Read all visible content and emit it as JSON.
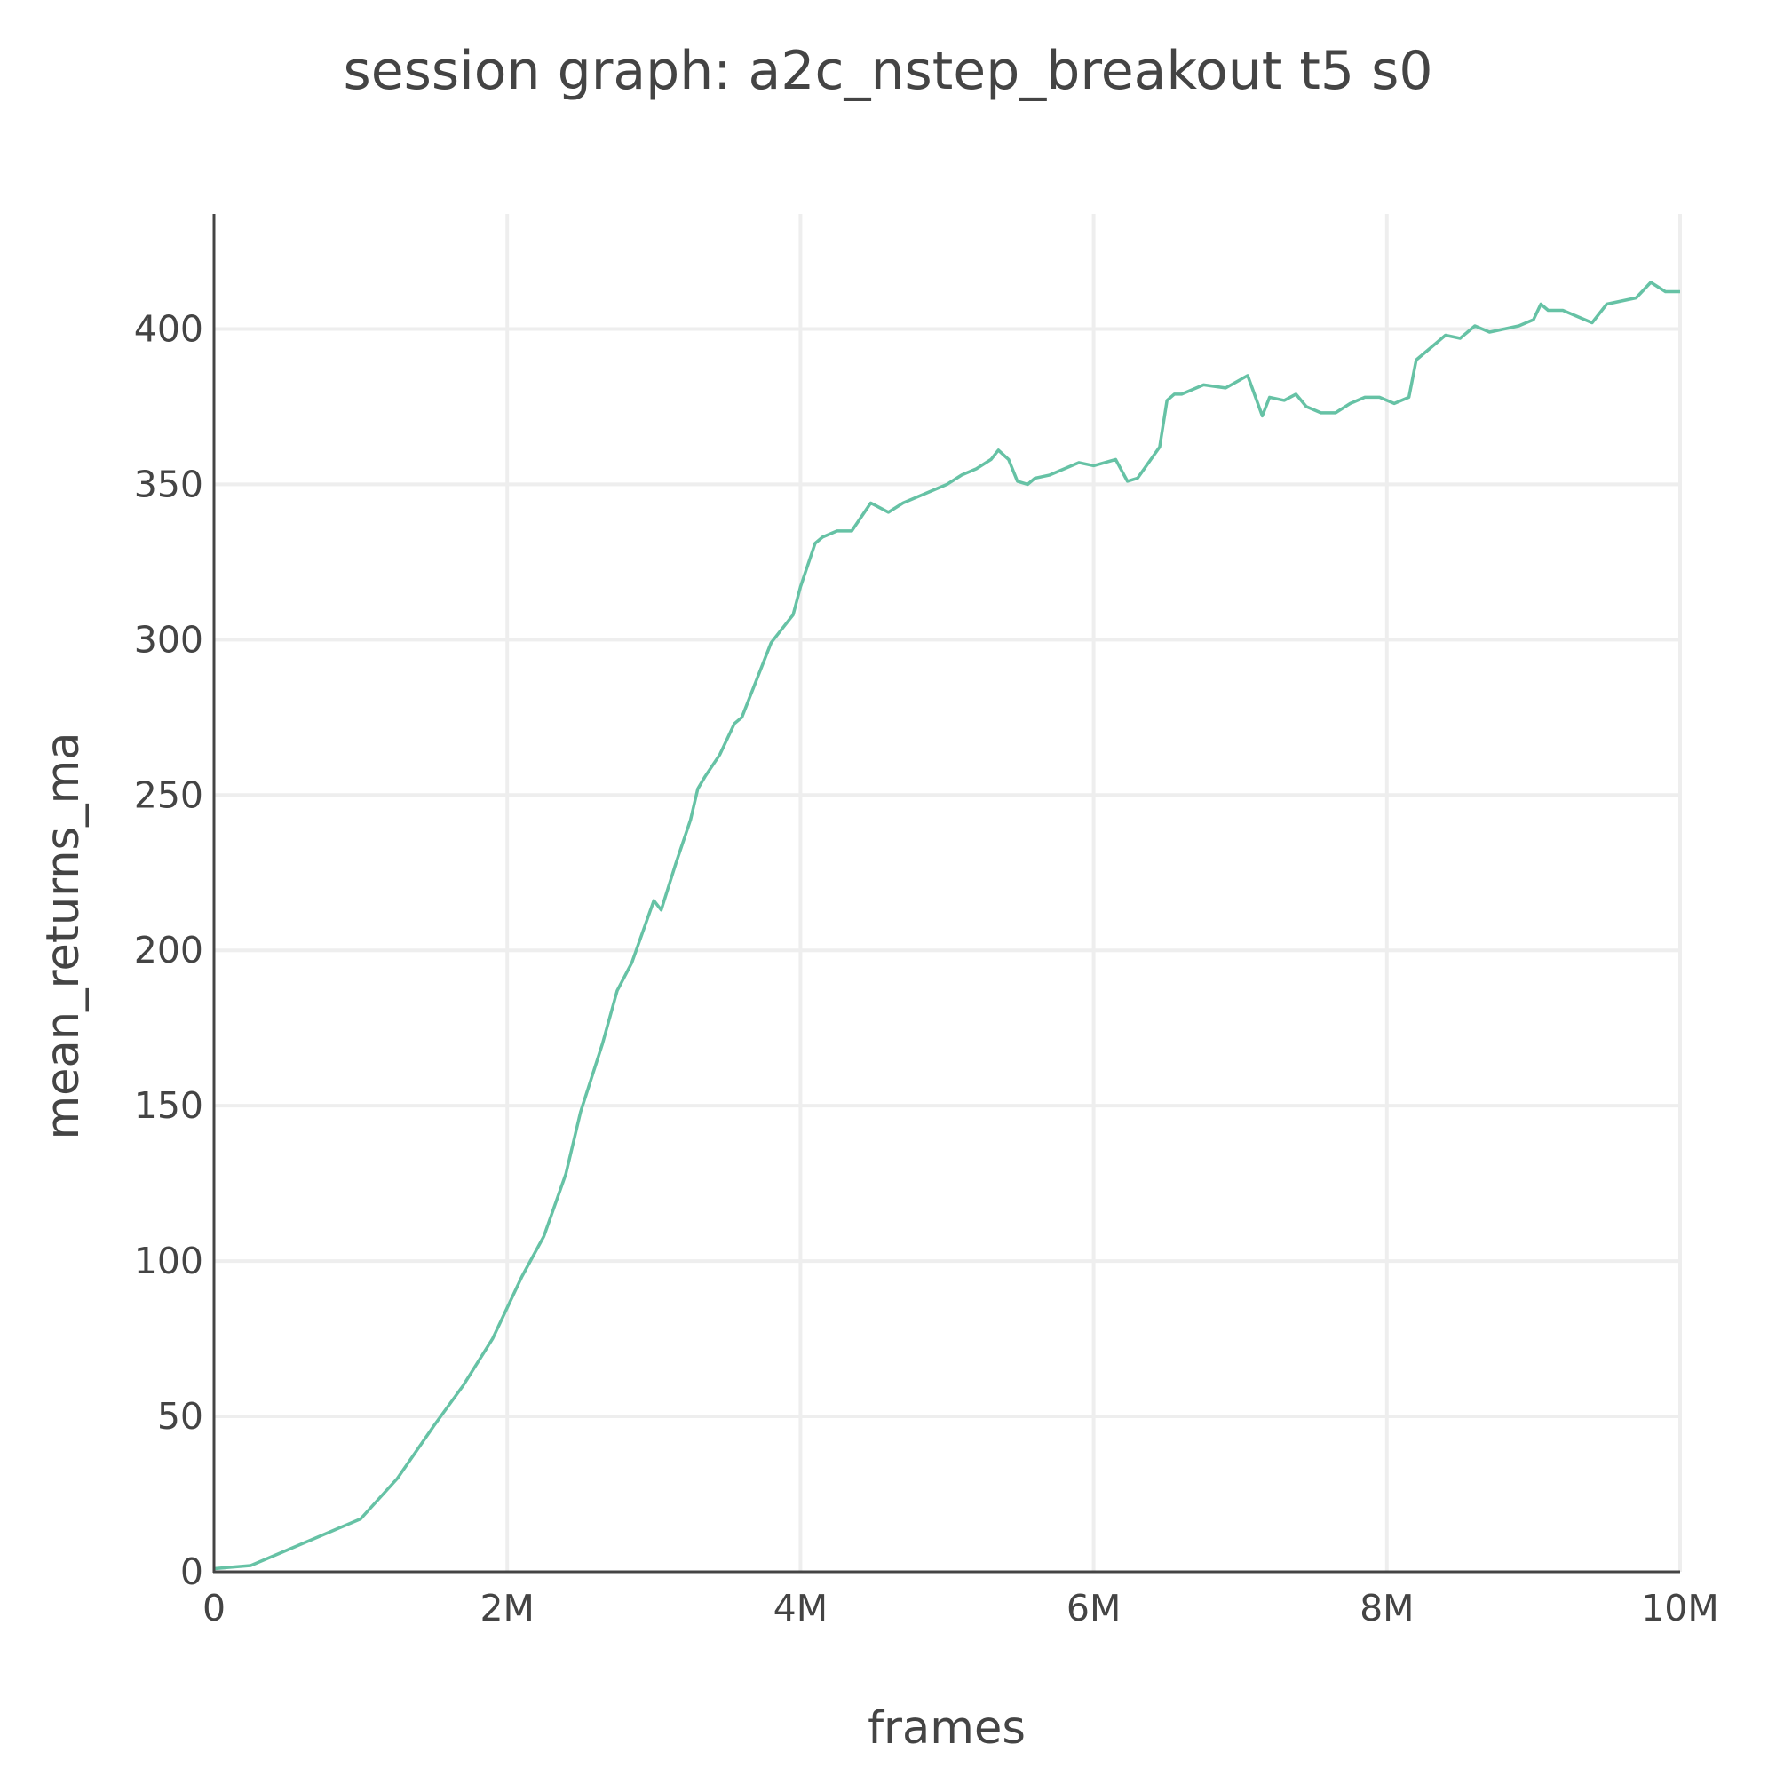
{
  "chart_data": {
    "type": "line",
    "title": "session graph: a2c_nstep_breakout t5 s0",
    "xlabel": "frames",
    "ylabel": "mean_returns_ma",
    "xlim": [
      0,
      10000000
    ],
    "ylim": [
      0,
      437
    ],
    "x_ticks": [
      0,
      2000000,
      4000000,
      6000000,
      8000000,
      10000000
    ],
    "x_tick_labels": [
      "0",
      "2M",
      "4M",
      "6M",
      "8M",
      "10M"
    ],
    "y_ticks": [
      0,
      50,
      100,
      150,
      200,
      250,
      300,
      350,
      400
    ],
    "y_tick_labels": [
      "0",
      "50",
      "100",
      "150",
      "200",
      "250",
      "300",
      "350",
      "400"
    ],
    "grid": true,
    "line_color": "#66c2a5",
    "series": [
      {
        "x": [
          0,
          250000,
          500000,
          750000,
          1000000,
          1250000,
          1500000,
          1700000,
          1900000,
          2100000,
          2250000,
          2400000,
          2500000,
          2650000,
          2750000,
          2850000,
          3000000,
          3050000,
          3150000,
          3250000,
          3300000,
          3350000,
          3450000,
          3550000,
          3600000,
          3700000,
          3800000,
          3850000,
          3950000,
          4000000,
          4100000,
          4150000,
          4250000,
          4350000,
          4480000,
          4520000,
          4600000,
          4700000,
          4800000,
          4900000,
          5000000,
          5100000,
          5200000,
          5300000,
          5350000,
          5420000,
          5480000,
          5550000,
          5600000,
          5700000,
          5800000,
          5900000,
          6000000,
          6150000,
          6230000,
          6300000,
          6450000,
          6500000,
          6550000,
          6600000,
          6750000,
          6900000,
          7050000,
          7150000,
          7200000,
          7300000,
          7380000,
          7450000,
          7550000,
          7650000,
          7750000,
          7850000,
          7950000,
          8050000,
          8150000,
          8200000,
          8350000,
          8400000,
          8500000,
          8600000,
          8700000,
          8800000,
          8900000,
          9000000,
          9050000,
          9100000,
          9200000,
          9300000,
          9400000,
          9500000,
          9600000,
          9700000,
          9800000,
          9900000,
          10000000
        ],
        "y": [
          1,
          2,
          7,
          12,
          17,
          30,
          47,
          60,
          75,
          95,
          108,
          128,
          148,
          170,
          187,
          196,
          216,
          213,
          228,
          242,
          252,
          256,
          263,
          273,
          275,
          287,
          299,
          302,
          308,
          317,
          331,
          333,
          335,
          335,
          344,
          343,
          341,
          344,
          346,
          348,
          350,
          353,
          355,
          358,
          361,
          358,
          351,
          350,
          352,
          353,
          355,
          357,
          356,
          358,
          351,
          352,
          362,
          377,
          379,
          379,
          382,
          381,
          385,
          372,
          378,
          377,
          379,
          375,
          373,
          373,
          376,
          378,
          378,
          376,
          378,
          390,
          396,
          398,
          397,
          401,
          399,
          400,
          401,
          403,
          408,
          406,
          406,
          404,
          402,
          408,
          409,
          410,
          415,
          412,
          412
        ]
      }
    ]
  }
}
